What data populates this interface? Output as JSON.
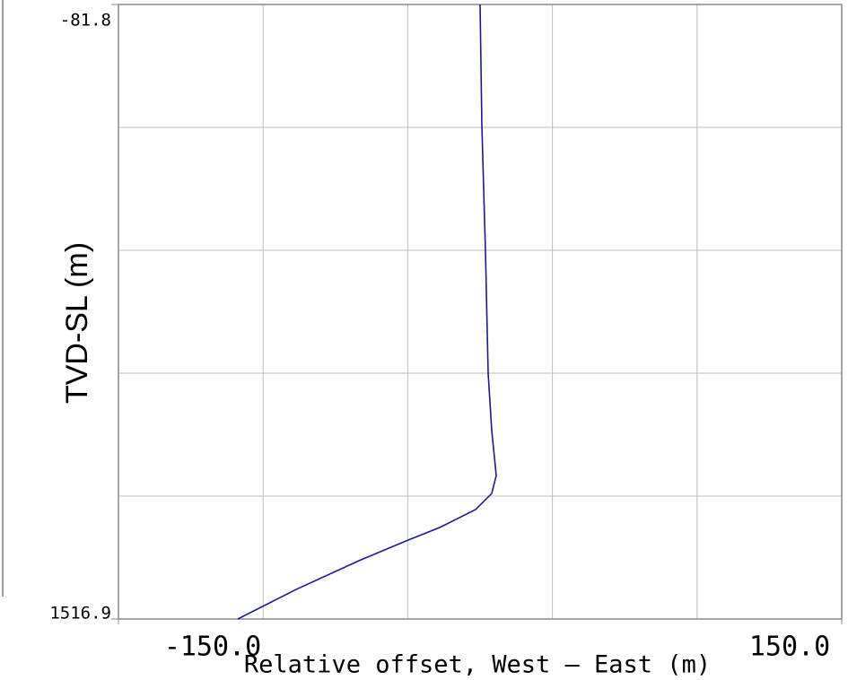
{
  "chart_data": {
    "type": "line",
    "x_label": "Relative offset, West — East (m)",
    "y_label": "TVD-SL (m)",
    "x": [
      0.0,
      0.74,
      2.23,
      3.35,
      4.84,
      6.7,
      4.84,
      -1.86,
      -16.75,
      -29.8,
      -50.25,
      -76.3,
      -100.5
    ],
    "series": [
      {
        "color": "#1a1a8c",
        "values": [
          -81.8,
          233.3,
          560.0,
          877.4,
          1026.8,
          1143.5,
          1190.2,
          1232.2,
          1278.9,
          1311.6,
          1365.3,
          1440.0,
          1516.9
        ]
      }
    ],
    "xlim": [
      -150.0,
      150.0
    ],
    "xticks": [
      {
        "value": -150,
        "label": "-150.0"
      },
      {
        "value": 150,
        "label": "150.0"
      }
    ],
    "ylim": [
      -81.8,
      1516.9
    ],
    "yticks": [
      -81.8,
      1516.9
    ],
    "y_inverted": true,
    "grid": true
  }
}
